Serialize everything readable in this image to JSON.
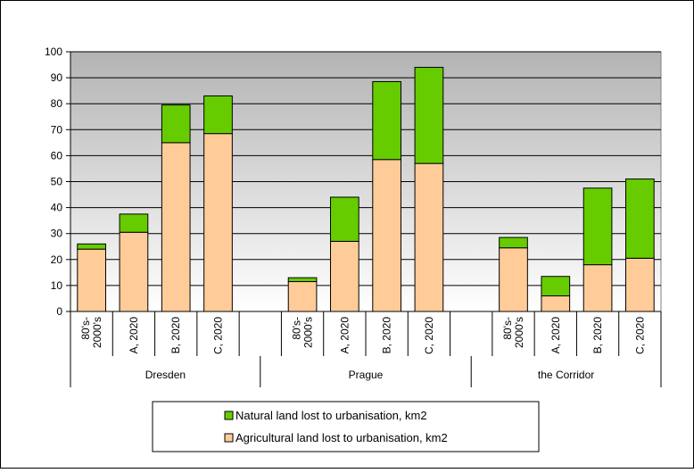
{
  "chart_data": {
    "type": "bar",
    "stacked": true,
    "ylim": [
      0,
      100
    ],
    "yticks": [
      0,
      10,
      20,
      30,
      40,
      50,
      60,
      70,
      80,
      90,
      100
    ],
    "grid": true,
    "legend_position": "bottom-center",
    "groups": [
      {
        "name": "Dresden",
        "categories": [
          "80's-\n2000's",
          "A, 2020",
          "B, 2020",
          "C, 2020"
        ]
      },
      {
        "name": "Prague",
        "categories": [
          "80's-\n2000's",
          "A, 2020",
          "B, 2020",
          "C, 2020"
        ]
      },
      {
        "name": "the Corridor",
        "categories": [
          "80's-\n2000's",
          "A, 2020",
          "B, 2020",
          "C, 2020"
        ]
      }
    ],
    "series": [
      {
        "name": "Agricultural land lost to urbanisation, km2",
        "color": "#ffcc99",
        "values": [
          [
            24,
            30.5,
            65,
            68.5
          ],
          [
            11.5,
            27,
            58.5,
            57
          ],
          [
            24.5,
            6,
            18,
            20.5
          ]
        ]
      },
      {
        "name": "Natural land lost to urbanisation, km2",
        "color": "#66cc00",
        "values": [
          [
            2,
            7,
            14.5,
            14.5
          ],
          [
            1.5,
            17,
            30,
            37
          ],
          [
            4,
            7.5,
            29.5,
            30.5
          ]
        ]
      }
    ],
    "legend_order": [
      "Natural land lost to urbanisation, km2",
      "Agricultural land lost to urbanisation, km2"
    ]
  }
}
